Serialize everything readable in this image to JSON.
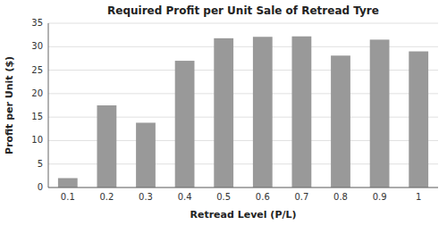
{
  "chart_data": {
    "type": "bar",
    "title": "Required Profit per Unit Sale of Retread Tyre",
    "xlabel": "Retread Level (P/L)",
    "ylabel": "Profit per Unit ($)",
    "categories": [
      "0.1",
      "0.2",
      "0.3",
      "0.4",
      "0.5",
      "0.6",
      "0.7",
      "0.8",
      "0.9",
      "1"
    ],
    "values": [
      2.0,
      17.5,
      13.8,
      27.0,
      31.8,
      32.1,
      32.2,
      28.1,
      31.5,
      29.0
    ],
    "color": "#999999",
    "ylim": [
      0,
      35
    ],
    "yticks": [
      0,
      5,
      10,
      15,
      20,
      25,
      30,
      35
    ],
    "grid": true
  }
}
